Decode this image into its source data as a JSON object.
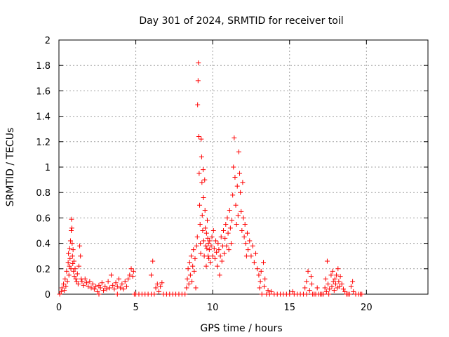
{
  "chart_data": {
    "type": "scatter",
    "title": "Day 301 of 2024, SRMTID for receiver toil",
    "xlabel": "GPS time / hours",
    "ylabel": "SRMTID / TECUs",
    "xlim": [
      0,
      24
    ],
    "ylim": [
      0,
      2
    ],
    "xticks": [
      0,
      5,
      10,
      15,
      20
    ],
    "xtick_labels": [
      "0",
      "5",
      "10",
      "15",
      "20"
    ],
    "yticks": [
      0,
      0.2,
      0.4,
      0.6,
      0.8,
      1,
      1.2,
      1.4,
      1.6,
      1.8,
      2
    ],
    "ytick_labels": [
      "0",
      "0.2",
      "0.4",
      "0.6",
      "0.8",
      "1",
      "1.2",
      "1.4",
      "1.6",
      "1.8",
      "2"
    ],
    "grid": true,
    "marker": "+",
    "marker_color": "#ff0000",
    "series": [
      {
        "name": "SRMTID",
        "points": [
          [
            0.05,
            0.0
          ],
          [
            0.15,
            0.02
          ],
          [
            0.2,
            0.05
          ],
          [
            0.3,
            0.08
          ],
          [
            0.35,
            0.03
          ],
          [
            0.4,
            0.12
          ],
          [
            0.45,
            0.06
          ],
          [
            0.5,
            0.18
          ],
          [
            0.55,
            0.1
          ],
          [
            0.6,
            0.25
          ],
          [
            0.62,
            0.32
          ],
          [
            0.65,
            0.15
          ],
          [
            0.68,
            0.22
          ],
          [
            0.7,
            0.36
          ],
          [
            0.72,
            0.28
          ],
          [
            0.75,
            0.42
          ],
          [
            0.78,
            0.2
          ],
          [
            0.8,
            0.5
          ],
          [
            0.82,
            0.59
          ],
          [
            0.84,
            0.52
          ],
          [
            0.86,
            0.4
          ],
          [
            0.88,
            0.3
          ],
          [
            0.9,
            0.24
          ],
          [
            0.92,
            0.35
          ],
          [
            0.95,
            0.18
          ],
          [
            0.98,
            0.26
          ],
          [
            1.0,
            0.14
          ],
          [
            1.05,
            0.2
          ],
          [
            1.1,
            0.12
          ],
          [
            1.15,
            0.1
          ],
          [
            1.2,
            0.16
          ],
          [
            1.25,
            0.08
          ],
          [
            1.3,
            0.22
          ],
          [
            1.35,
            0.38
          ],
          [
            1.4,
            0.3
          ],
          [
            1.45,
            0.12
          ],
          [
            1.5,
            0.1
          ],
          [
            1.6,
            0.07
          ],
          [
            1.7,
            0.12
          ],
          [
            1.8,
            0.09
          ],
          [
            1.9,
            0.06
          ],
          [
            2.0,
            0.1
          ],
          [
            2.1,
            0.05
          ],
          [
            2.2,
            0.08
          ],
          [
            2.3,
            0.04
          ],
          [
            2.4,
            0.06
          ],
          [
            2.5,
            0.02
          ],
          [
            2.6,
            0.07
          ],
          [
            2.7,
            0.05
          ],
          [
            2.8,
            0.09
          ],
          [
            2.9,
            0.03
          ],
          [
            3.0,
            0.06
          ],
          [
            3.1,
            0.04
          ],
          [
            3.2,
            0.1
          ],
          [
            3.3,
            0.05
          ],
          [
            3.4,
            0.15
          ],
          [
            3.5,
            0.07
          ],
          [
            3.6,
            0.04
          ],
          [
            3.7,
            0.09
          ],
          [
            3.8,
            0.06
          ],
          [
            3.9,
            0.12
          ],
          [
            4.0,
            0.05
          ],
          [
            4.1,
            0.08
          ],
          [
            4.2,
            0.04
          ],
          [
            4.3,
            0.1
          ],
          [
            4.4,
            0.06
          ],
          [
            4.5,
            0.12
          ],
          [
            4.6,
            0.15
          ],
          [
            4.7,
            0.2
          ],
          [
            4.8,
            0.14
          ],
          [
            4.85,
            0.18
          ],
          [
            4.9,
            0.0
          ],
          [
            5.0,
            0.0
          ],
          [
            5.2,
            0.0
          ],
          [
            5.4,
            0.0
          ],
          [
            5.6,
            0.0
          ],
          [
            5.8,
            0.0
          ],
          [
            6.0,
            0.0
          ],
          [
            6.0,
            0.15
          ],
          [
            6.1,
            0.26
          ],
          [
            6.2,
            0.0
          ],
          [
            6.3,
            0.05
          ],
          [
            6.4,
            0.08
          ],
          [
            6.5,
            0.02
          ],
          [
            6.6,
            0.06
          ],
          [
            6.7,
            0.09
          ],
          [
            6.8,
            0.0
          ],
          [
            7.0,
            0.0
          ],
          [
            7.2,
            0.0
          ],
          [
            7.4,
            0.0
          ],
          [
            7.6,
            0.0
          ],
          [
            7.8,
            0.0
          ],
          [
            8.0,
            0.0
          ],
          [
            8.2,
            0.0
          ],
          [
            8.3,
            0.05
          ],
          [
            8.35,
            0.12
          ],
          [
            8.4,
            0.2
          ],
          [
            8.45,
            0.08
          ],
          [
            8.5,
            0.25
          ],
          [
            8.55,
            0.15
          ],
          [
            8.6,
            0.3
          ],
          [
            8.65,
            0.1
          ],
          [
            8.7,
            0.22
          ],
          [
            8.75,
            0.35
          ],
          [
            8.8,
            0.18
          ],
          [
            8.85,
            0.28
          ],
          [
            8.9,
            0.05
          ],
          [
            8.95,
            0.38
          ],
          [
            9.0,
            0.45
          ],
          [
            9.02,
            1.49
          ],
          [
            9.05,
            1.68
          ],
          [
            9.07,
            1.82
          ],
          [
            9.1,
            1.24
          ],
          [
            9.12,
            0.95
          ],
          [
            9.15,
            0.7
          ],
          [
            9.18,
            0.55
          ],
          [
            9.2,
            0.4
          ],
          [
            9.22,
            0.32
          ],
          [
            9.25,
            1.22
          ],
          [
            9.28,
            1.08
          ],
          [
            9.3,
            0.88
          ],
          [
            9.32,
            0.62
          ],
          [
            9.35,
            0.5
          ],
          [
            9.38,
            0.98
          ],
          [
            9.4,
            0.76
          ],
          [
            9.42,
            0.42
          ],
          [
            9.45,
            0.3
          ],
          [
            9.48,
            0.9
          ],
          [
            9.5,
            0.66
          ],
          [
            9.52,
            0.52
          ],
          [
            9.55,
            0.38
          ],
          [
            9.58,
            0.22
          ],
          [
            9.6,
            0.48
          ],
          [
            9.62,
            0.36
          ],
          [
            9.65,
            0.58
          ],
          [
            9.68,
            0.44
          ],
          [
            9.7,
            0.3
          ],
          [
            9.72,
            0.4
          ],
          [
            9.75,
            0.28
          ],
          [
            9.78,
            0.35
          ],
          [
            9.8,
            0.42
          ],
          [
            9.85,
            0.25
          ],
          [
            9.9,
            0.38
          ],
          [
            9.95,
            0.45
          ],
          [
            10.0,
            0.3
          ],
          [
            10.05,
            0.5
          ],
          [
            10.1,
            0.36
          ],
          [
            10.15,
            0.28
          ],
          [
            10.2,
            0.42
          ],
          [
            10.25,
            0.33
          ],
          [
            10.3,
            0.22
          ],
          [
            10.35,
            0.4
          ],
          [
            10.4,
            0.35
          ],
          [
            10.45,
            0.15
          ],
          [
            10.5,
            0.3
          ],
          [
            10.55,
            0.45
          ],
          [
            10.6,
            0.26
          ],
          [
            10.65,
            0.38
          ],
          [
            10.7,
            0.5
          ],
          [
            10.75,
            0.32
          ],
          [
            10.8,
            0.44
          ],
          [
            10.85,
            0.55
          ],
          [
            10.9,
            0.38
          ],
          [
            10.95,
            0.6
          ],
          [
            11.0,
            0.48
          ],
          [
            11.05,
            0.35
          ],
          [
            11.1,
            0.66
          ],
          [
            11.15,
            0.52
          ],
          [
            11.2,
            0.4
          ],
          [
            11.25,
            0.58
          ],
          [
            11.3,
            0.78
          ],
          [
            11.35,
            1.0
          ],
          [
            11.4,
            1.23
          ],
          [
            11.45,
            0.92
          ],
          [
            11.5,
            0.7
          ],
          [
            11.55,
            0.55
          ],
          [
            11.6,
            0.85
          ],
          [
            11.65,
            0.62
          ],
          [
            11.7,
            1.12
          ],
          [
            11.75,
            0.95
          ],
          [
            11.8,
            0.8
          ],
          [
            11.85,
            0.65
          ],
          [
            11.9,
            0.5
          ],
          [
            11.95,
            0.88
          ],
          [
            12.0,
            0.6
          ],
          [
            12.05,
            0.45
          ],
          [
            12.1,
            0.55
          ],
          [
            12.15,
            0.4
          ],
          [
            12.2,
            0.3
          ],
          [
            12.25,
            0.48
          ],
          [
            12.3,
            0.35
          ],
          [
            12.4,
            0.42
          ],
          [
            12.5,
            0.3
          ],
          [
            12.6,
            0.38
          ],
          [
            12.7,
            0.25
          ],
          [
            12.8,
            0.32
          ],
          [
            12.9,
            0.2
          ],
          [
            13.0,
            0.15
          ],
          [
            13.05,
            0.05
          ],
          [
            13.1,
            0.1
          ],
          [
            13.15,
            0.18
          ],
          [
            13.2,
            0.0
          ],
          [
            13.3,
            0.25
          ],
          [
            13.35,
            0.06
          ],
          [
            13.4,
            0.12
          ],
          [
            13.5,
            0.0
          ],
          [
            13.6,
            0.03
          ],
          [
            13.7,
            0.0
          ],
          [
            13.8,
            0.02
          ],
          [
            14.0,
            0.0
          ],
          [
            14.2,
            0.0
          ],
          [
            14.4,
            0.0
          ],
          [
            14.6,
            0.0
          ],
          [
            14.8,
            0.0
          ],
          [
            15.0,
            0.0
          ],
          [
            15.2,
            0.02
          ],
          [
            15.3,
            0.0
          ],
          [
            15.5,
            0.0
          ],
          [
            15.7,
            0.0
          ],
          [
            15.9,
            0.0
          ],
          [
            16.1,
            0.0
          ],
          [
            16.3,
            0.03
          ],
          [
            16.5,
            0.0
          ],
          [
            16.7,
            0.0
          ],
          [
            16.9,
            0.0
          ],
          [
            17.1,
            0.0
          ],
          [
            17.3,
            0.05
          ],
          [
            17.35,
            0.12
          ],
          [
            17.4,
            0.02
          ],
          [
            17.45,
            0.26
          ],
          [
            17.5,
            0.08
          ],
          [
            17.55,
            0.0
          ],
          [
            17.6,
            0.04
          ],
          [
            17.7,
            0.15
          ],
          [
            17.75,
            0.06
          ],
          [
            17.8,
            0.18
          ],
          [
            17.85,
            0.1
          ],
          [
            17.9,
            0.03
          ],
          [
            17.95,
            0.12
          ],
          [
            18.0,
            0.08
          ],
          [
            18.05,
            0.15
          ],
          [
            18.1,
            0.05
          ],
          [
            18.15,
            0.2
          ],
          [
            18.2,
            0.1
          ],
          [
            18.25,
            0.06
          ],
          [
            18.3,
            0.14
          ],
          [
            18.4,
            0.08
          ],
          [
            18.5,
            0.04
          ],
          [
            18.6,
            0.02
          ],
          [
            18.7,
            0.0
          ],
          [
            18.8,
            0.0
          ],
          [
            18.9,
            0.0
          ],
          [
            19.0,
            0.06
          ],
          [
            19.1,
            0.1
          ],
          [
            19.15,
            0.02
          ],
          [
            19.3,
            0.0
          ],
          [
            19.5,
            0.0
          ],
          [
            19.6,
            0.0
          ],
          [
            19.7,
            0.0
          ],
          [
            16.0,
            0.05
          ],
          [
            16.1,
            0.1
          ],
          [
            16.2,
            0.18
          ],
          [
            16.4,
            0.14
          ],
          [
            16.45,
            0.08
          ],
          [
            16.6,
            0.0
          ],
          [
            16.8,
            0.05
          ],
          [
            17.0,
            0.0
          ],
          [
            17.2,
            0.0
          ],
          [
            2.6,
            0.0
          ],
          [
            3.8,
            0.0
          ]
        ]
      }
    ]
  }
}
